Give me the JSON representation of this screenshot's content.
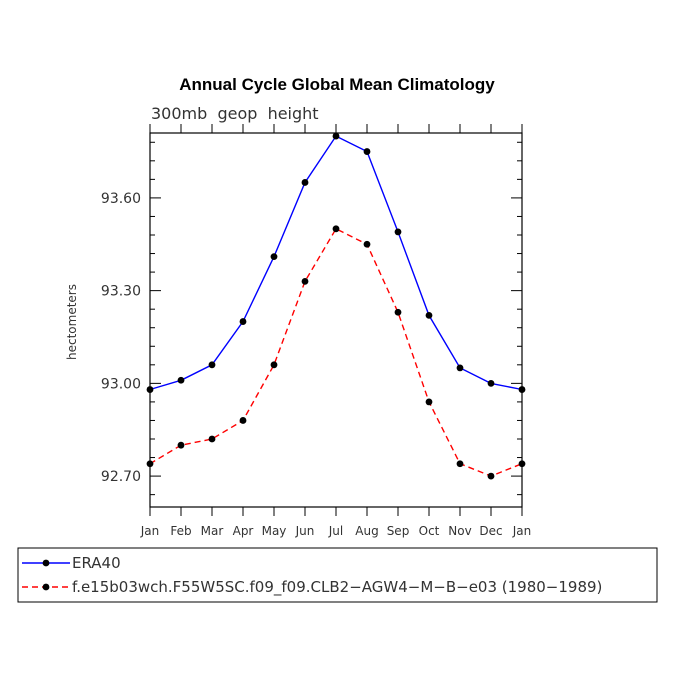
{
  "chart_data": {
    "type": "line",
    "title": "Annual Cycle Global Mean Climatology",
    "subtitle": "300mb  geop  height",
    "xlabel": "",
    "ylabel": "hectometers",
    "categories": [
      "Jan",
      "Feb",
      "Mar",
      "Apr",
      "May",
      "Jun",
      "Jul",
      "Aug",
      "Sep",
      "Oct",
      "Nov",
      "Dec",
      "Jan"
    ],
    "ylim": [
      92.6,
      93.81
    ],
    "yticks": [
      92.7,
      93.0,
      93.3,
      93.6
    ],
    "ytick_labels": [
      "92.70",
      "93.00",
      "93.30",
      "93.60"
    ],
    "grid": false,
    "legend_position": "bottom",
    "series": [
      {
        "name": "ERA40",
        "color": "#0000ff",
        "dash": "solid",
        "values": [
          92.98,
          93.01,
          93.06,
          93.2,
          93.41,
          93.65,
          93.8,
          93.75,
          93.49,
          93.22,
          93.05,
          93.0,
          92.98
        ]
      },
      {
        "name": "f.e15b03wch.F55W5SC.f09_f09.CLB2−AGW4−M−B−e03 (1980−1989)",
        "color": "#ff0000",
        "dash": "dashed",
        "values": [
          92.74,
          92.8,
          92.82,
          92.88,
          93.06,
          93.33,
          93.5,
          93.45,
          93.23,
          92.94,
          92.74,
          92.7,
          92.74
        ]
      }
    ]
  }
}
